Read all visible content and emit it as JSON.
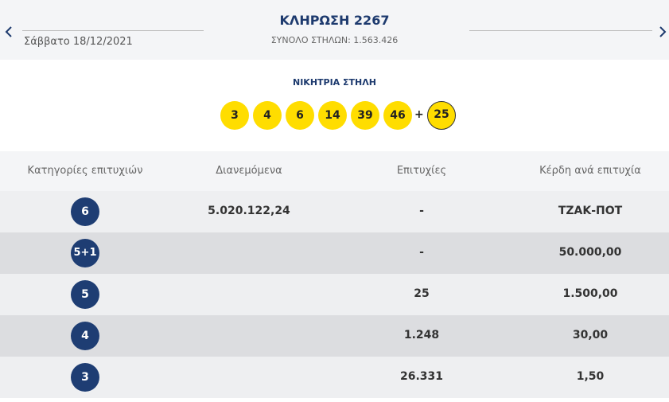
{
  "header": {
    "title": "ΚΛΗΡΩΣΗ 2267",
    "date": "Σάββατο 18/12/2021",
    "total": "ΣΥΝΟΛΟ ΣΤΗΛΩΝ: 1.563.426"
  },
  "winning": {
    "title": "ΝΙΚΗΤΡΙΑ ΣΤΗΛΗ",
    "numbers": [
      "3",
      "4",
      "6",
      "14",
      "39",
      "46"
    ],
    "plus": "+",
    "bonus": "25"
  },
  "table": {
    "headers": [
      "Κατηγορίες επιτυχιών",
      "Διανεμόμενα",
      "Επιτυχίες",
      "Κέρδη ανά επιτυχία"
    ],
    "rows": [
      {
        "category": "6",
        "distributed": "5.020.122,24",
        "winners": "-",
        "prize": "ΤΖΑΚ-ΠΟΤ"
      },
      {
        "category": "5+1",
        "winners": "-",
        "prize": "50.000,00"
      },
      {
        "category": "5",
        "winners": "25",
        "prize": "1.500,00"
      },
      {
        "category": "4",
        "winners": "1.248",
        "prize": "30,00"
      },
      {
        "category": "3",
        "winners": "26.331",
        "prize": "1,50"
      }
    ]
  }
}
